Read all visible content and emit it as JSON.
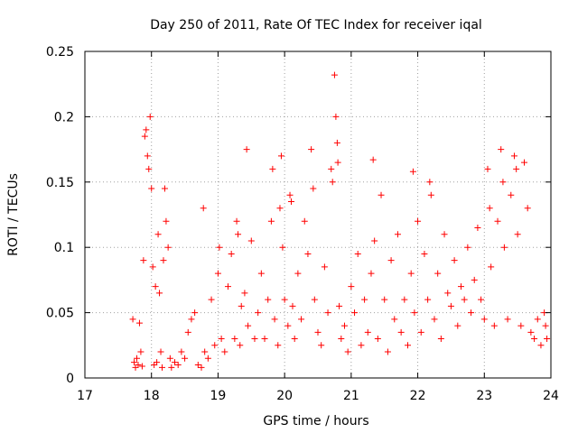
{
  "chart_data": {
    "type": "scatter",
    "title": "Day 250 of 2011, Rate Of TEC Index for receiver iqal",
    "xlabel": "GPS time / hours",
    "ylabel": "ROTI / TECUs",
    "xlim": [
      17,
      24
    ],
    "ylim": [
      0,
      0.25
    ],
    "x_ticks": [
      17,
      18,
      19,
      20,
      21,
      22,
      23,
      24
    ],
    "x_tick_labels": [
      "17",
      "18",
      "19",
      "20",
      "21",
      "22",
      "23",
      "24"
    ],
    "y_ticks": [
      0,
      0.05,
      0.1,
      0.15,
      0.2,
      0.25
    ],
    "y_tick_labels": [
      "0",
      "0.05",
      "0.1",
      "0.15",
      "0.2",
      "0.25"
    ],
    "grid": true,
    "marker": "+",
    "color": "#ff0000",
    "series": [
      {
        "name": "ROTI",
        "points": [
          [
            17.72,
            0.045
          ],
          [
            17.74,
            0.012
          ],
          [
            17.76,
            0.008
          ],
          [
            17.78,
            0.015
          ],
          [
            17.8,
            0.01
          ],
          [
            17.82,
            0.042
          ],
          [
            17.84,
            0.02
          ],
          [
            17.86,
            0.009
          ],
          [
            17.88,
            0.09
          ],
          [
            17.9,
            0.185
          ],
          [
            17.92,
            0.19
          ],
          [
            17.94,
            0.17
          ],
          [
            17.96,
            0.16
          ],
          [
            17.98,
            0.2
          ],
          [
            18.0,
            0.145
          ],
          [
            18.02,
            0.085
          ],
          [
            18.04,
            0.01
          ],
          [
            18.06,
            0.07
          ],
          [
            18.08,
            0.012
          ],
          [
            18.1,
            0.11
          ],
          [
            18.12,
            0.065
          ],
          [
            18.14,
            0.02
          ],
          [
            18.16,
            0.008
          ],
          [
            18.18,
            0.09
          ],
          [
            18.2,
            0.145
          ],
          [
            18.22,
            0.12
          ],
          [
            18.25,
            0.1
          ],
          [
            18.28,
            0.015
          ],
          [
            18.3,
            0.008
          ],
          [
            18.35,
            0.012
          ],
          [
            18.4,
            0.01
          ],
          [
            18.45,
            0.02
          ],
          [
            18.5,
            0.015
          ],
          [
            18.55,
            0.035
          ],
          [
            18.6,
            0.045
          ],
          [
            18.65,
            0.05
          ],
          [
            18.7,
            0.01
          ],
          [
            18.75,
            0.008
          ],
          [
            18.78,
            0.13
          ],
          [
            18.8,
            0.02
          ],
          [
            18.85,
            0.015
          ],
          [
            18.9,
            0.06
          ],
          [
            18.95,
            0.025
          ],
          [
            19.0,
            0.08
          ],
          [
            19.02,
            0.1
          ],
          [
            19.05,
            0.03
          ],
          [
            19.1,
            0.02
          ],
          [
            19.15,
            0.07
          ],
          [
            19.2,
            0.095
          ],
          [
            19.25,
            0.03
          ],
          [
            19.28,
            0.12
          ],
          [
            19.3,
            0.11
          ],
          [
            19.33,
            0.025
          ],
          [
            19.35,
            0.055
          ],
          [
            19.4,
            0.065
          ],
          [
            19.43,
            0.175
          ],
          [
            19.45,
            0.04
          ],
          [
            19.5,
            0.105
          ],
          [
            19.55,
            0.03
          ],
          [
            19.6,
            0.05
          ],
          [
            19.65,
            0.08
          ],
          [
            19.7,
            0.03
          ],
          [
            19.75,
            0.06
          ],
          [
            19.8,
            0.12
          ],
          [
            19.82,
            0.16
          ],
          [
            19.85,
            0.045
          ],
          [
            19.9,
            0.025
          ],
          [
            19.93,
            0.13
          ],
          [
            19.95,
            0.17
          ],
          [
            19.97,
            0.1
          ],
          [
            20.0,
            0.06
          ],
          [
            20.05,
            0.04
          ],
          [
            20.08,
            0.14
          ],
          [
            20.1,
            0.135
          ],
          [
            20.12,
            0.055
          ],
          [
            20.15,
            0.03
          ],
          [
            20.2,
            0.08
          ],
          [
            20.25,
            0.045
          ],
          [
            20.3,
            0.12
          ],
          [
            20.35,
            0.095
          ],
          [
            20.4,
            0.175
          ],
          [
            20.43,
            0.145
          ],
          [
            20.45,
            0.06
          ],
          [
            20.5,
            0.035
          ],
          [
            20.55,
            0.025
          ],
          [
            20.6,
            0.085
          ],
          [
            20.65,
            0.05
          ],
          [
            20.7,
            0.16
          ],
          [
            20.72,
            0.15
          ],
          [
            20.75,
            0.232
          ],
          [
            20.77,
            0.2
          ],
          [
            20.79,
            0.18
          ],
          [
            20.8,
            0.165
          ],
          [
            20.82,
            0.055
          ],
          [
            20.85,
            0.03
          ],
          [
            20.9,
            0.04
          ],
          [
            20.95,
            0.02
          ],
          [
            21.0,
            0.07
          ],
          [
            21.05,
            0.05
          ],
          [
            21.1,
            0.095
          ],
          [
            21.15,
            0.025
          ],
          [
            21.2,
            0.06
          ],
          [
            21.25,
            0.035
          ],
          [
            21.3,
            0.08
          ],
          [
            21.33,
            0.167
          ],
          [
            21.35,
            0.105
          ],
          [
            21.4,
            0.03
          ],
          [
            21.45,
            0.14
          ],
          [
            21.5,
            0.06
          ],
          [
            21.55,
            0.02
          ],
          [
            21.6,
            0.09
          ],
          [
            21.65,
            0.045
          ],
          [
            21.7,
            0.11
          ],
          [
            21.75,
            0.035
          ],
          [
            21.8,
            0.06
          ],
          [
            21.85,
            0.025
          ],
          [
            21.9,
            0.08
          ],
          [
            21.93,
            0.158
          ],
          [
            21.95,
            0.05
          ],
          [
            22.0,
            0.12
          ],
          [
            22.05,
            0.035
          ],
          [
            22.1,
            0.095
          ],
          [
            22.15,
            0.06
          ],
          [
            22.18,
            0.15
          ],
          [
            22.2,
            0.14
          ],
          [
            22.25,
            0.045
          ],
          [
            22.3,
            0.08
          ],
          [
            22.35,
            0.03
          ],
          [
            22.4,
            0.11
          ],
          [
            22.45,
            0.065
          ],
          [
            22.5,
            0.055
          ],
          [
            22.55,
            0.09
          ],
          [
            22.6,
            0.04
          ],
          [
            22.65,
            0.07
          ],
          [
            22.7,
            0.06
          ],
          [
            22.75,
            0.1
          ],
          [
            22.8,
            0.05
          ],
          [
            22.85,
            0.075
          ],
          [
            22.9,
            0.115
          ],
          [
            22.95,
            0.06
          ],
          [
            23.0,
            0.045
          ],
          [
            23.05,
            0.16
          ],
          [
            23.08,
            0.13
          ],
          [
            23.1,
            0.085
          ],
          [
            23.15,
            0.04
          ],
          [
            23.2,
            0.12
          ],
          [
            23.25,
            0.175
          ],
          [
            23.28,
            0.15
          ],
          [
            23.3,
            0.1
          ],
          [
            23.35,
            0.045
          ],
          [
            23.4,
            0.14
          ],
          [
            23.45,
            0.17
          ],
          [
            23.48,
            0.16
          ],
          [
            23.5,
            0.11
          ],
          [
            23.55,
            0.04
          ],
          [
            23.6,
            0.165
          ],
          [
            23.65,
            0.13
          ],
          [
            23.7,
            0.035
          ],
          [
            23.75,
            0.03
          ],
          [
            23.8,
            0.045
          ],
          [
            23.85,
            0.025
          ],
          [
            23.9,
            0.05
          ],
          [
            23.92,
            0.04
          ],
          [
            23.94,
            0.03
          ]
        ]
      }
    ]
  }
}
